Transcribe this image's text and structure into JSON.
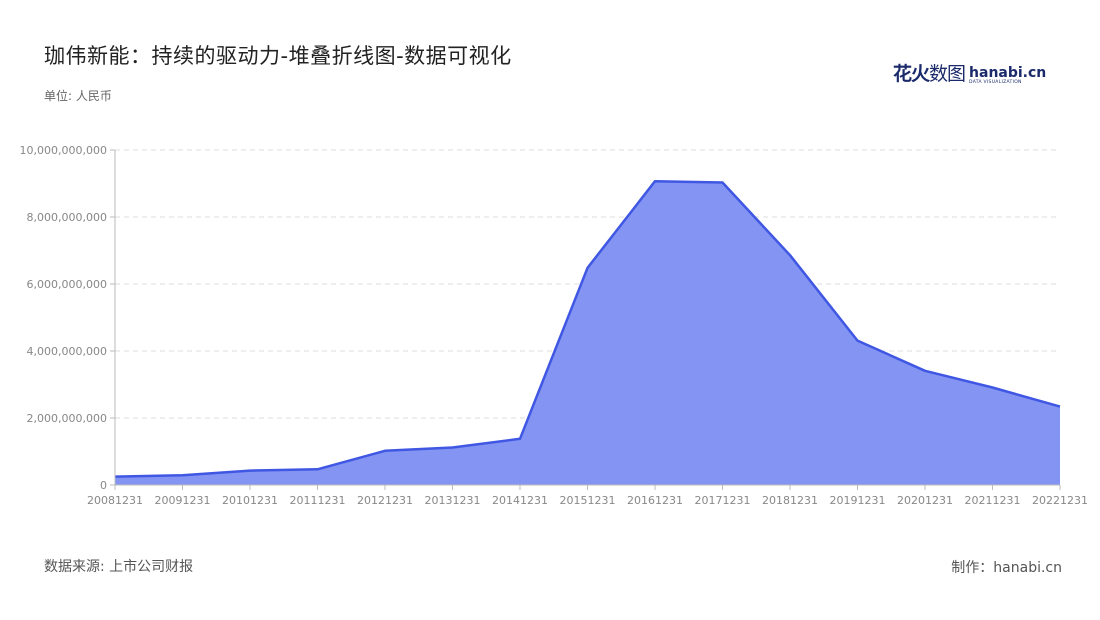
{
  "header": {
    "title": "珈伟新能：持续的驱动力-堆叠折线图-数据可视化",
    "unit": "单位: 人民币"
  },
  "footer": {
    "source": "数据来源: 上市公司财报",
    "credit": "制作：hanabi.cn"
  },
  "logo": {
    "cn_bold": "花火",
    "cn_thin": "数图",
    "en_main": "hanabi.cn",
    "en_sub": "DATA VISUALIZATION"
  },
  "colors": {
    "line": "#3f57e3",
    "fill": "#8494f2",
    "grid": "#dddddd"
  },
  "chart_data": {
    "type": "area",
    "x": [
      "20081231",
      "20091231",
      "20101231",
      "20111231",
      "20121231",
      "20131231",
      "20141231",
      "20151231",
      "20161231",
      "20171231",
      "20181231",
      "20191231",
      "20201231",
      "20211231",
      "20221231"
    ],
    "series": [
      {
        "values": [
          250000000,
          290000000,
          430000000,
          470000000,
          1020000000,
          1120000000,
          1380000000,
          6480000000,
          9070000000,
          9030000000,
          6860000000,
          4310000000,
          3410000000,
          2910000000,
          2340000000
        ]
      }
    ],
    "ylim": [
      0,
      10000000000
    ],
    "yticks": [
      {
        "value": 0,
        "label": "0"
      },
      {
        "value": 2000000000,
        "label": "2,000,000,000"
      },
      {
        "value": 4000000000,
        "label": "4,000,000,000"
      },
      {
        "value": 6000000000,
        "label": "6,000,000,000"
      },
      {
        "value": 8000000000,
        "label": "8,000,000,000"
      },
      {
        "value": 10000000000,
        "label": "10,000,000,000"
      }
    ],
    "grid": true
  }
}
